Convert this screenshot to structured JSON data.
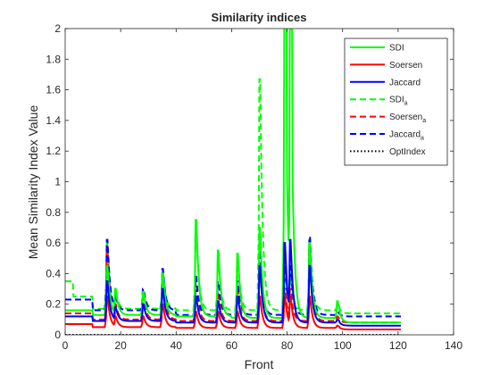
{
  "chart_data": {
    "type": "line",
    "title": "Similarity indices",
    "xlabel": "Front",
    "ylabel": "Mean Similarity Index Value",
    "xlim": [
      0,
      140
    ],
    "ylim": [
      0,
      2
    ],
    "xticks": [
      0,
      20,
      40,
      60,
      80,
      100,
      120,
      140
    ],
    "yticks": [
      0,
      0.2,
      0.4,
      0.6,
      0.8,
      1,
      1.2,
      1.4,
      1.6,
      1.8,
      2
    ],
    "xtick_labels": [
      "0",
      "20",
      "40",
      "60",
      "80",
      "100",
      "120",
      "140"
    ],
    "ytick_labels": [
      "0",
      "0.2",
      "0.4",
      "0.6",
      "0.8",
      "1",
      "1.2",
      "1.4",
      "1.6",
      "1.8",
      "2"
    ],
    "grid": false,
    "legend_position": "top-right",
    "x_range": [
      0,
      121
    ],
    "series": [
      {
        "name": "SDI",
        "subscript": "",
        "color": "#00ff00",
        "style": "solid",
        "base": 0.16,
        "baseline_levels": [
          [
            0,
            0.16
          ],
          [
            10,
            0.13
          ],
          [
            40,
            0.12
          ],
          [
            60,
            0.11
          ],
          [
            99,
            0.08
          ]
        ]
      },
      {
        "name": "Soersen",
        "subscript": "",
        "color": "#ff0000",
        "style": "solid",
        "base": 0.07,
        "baseline_levels": [
          [
            0,
            0.07
          ],
          [
            10,
            0.05
          ],
          [
            40,
            0.045
          ],
          [
            99,
            0.035
          ]
        ]
      },
      {
        "name": "Jaccard",
        "subscript": "",
        "color": "#0000ff",
        "style": "solid",
        "base": 0.12,
        "baseline_levels": [
          [
            0,
            0.12
          ],
          [
            10,
            0.09
          ],
          [
            40,
            0.08
          ],
          [
            99,
            0.06
          ]
        ]
      },
      {
        "name": "SDI",
        "subscript": "a",
        "color": "#00ff00",
        "style": "dashed",
        "base": 0.35,
        "baseline_levels": [
          [
            0,
            0.35
          ],
          [
            3,
            0.25
          ],
          [
            10,
            0.17
          ],
          [
            40,
            0.16
          ],
          [
            99,
            0.14
          ]
        ]
      },
      {
        "name": "Soersen",
        "subscript": "a",
        "color": "#ff0000",
        "style": "dashed",
        "base": 0.14,
        "baseline_levels": [
          [
            0,
            0.14
          ],
          [
            10,
            0.1
          ],
          [
            40,
            0.09
          ],
          [
            99,
            0.08
          ]
        ]
      },
      {
        "name": "Jaccard",
        "subscript": "a",
        "color": "#0000ff",
        "style": "dashed",
        "base": 0.23,
        "baseline_levels": [
          [
            0,
            0.23
          ],
          [
            10,
            0.16
          ],
          [
            40,
            0.13
          ],
          [
            99,
            0.12
          ]
        ]
      },
      {
        "name": "OptIndex",
        "subscript": "",
        "color": "#000000",
        "style": "dotted",
        "base": 0.0,
        "baseline_levels": [
          [
            0,
            0.0
          ]
        ]
      }
    ],
    "spikes": [
      {
        "x": 15,
        "heights": [
          0.45,
          0.25,
          0.35,
          0.6,
          0.58,
          0.62,
          0
        ]
      },
      {
        "x": 18,
        "heights": [
          0.3,
          0.12,
          0.18,
          0.28,
          0.2,
          0.25,
          0
        ]
      },
      {
        "x": 28,
        "heights": [
          0.28,
          0.12,
          0.2,
          0.3,
          0.25,
          0.3,
          0
        ]
      },
      {
        "x": 35,
        "heights": [
          0.4,
          0.2,
          0.3,
          0.42,
          0.4,
          0.43,
          0
        ]
      },
      {
        "x": 47,
        "heights": [
          0.75,
          0.15,
          0.25,
          0.72,
          0.35,
          0.38,
          0
        ]
      },
      {
        "x": 55,
        "heights": [
          0.55,
          0.15,
          0.22,
          0.5,
          0.28,
          0.35,
          0
        ]
      },
      {
        "x": 62,
        "heights": [
          0.53,
          0.15,
          0.25,
          0.5,
          0.3,
          0.35,
          0
        ]
      },
      {
        "x": 70,
        "heights": [
          0.7,
          0.25,
          0.45,
          1.67,
          0.45,
          0.55,
          0
        ]
      },
      {
        "x": 79,
        "heights": [
          2.0,
          0.25,
          0.6,
          0.4,
          0.3,
          0.45,
          0
        ]
      },
      {
        "x": 81,
        "heights": [
          2.0,
          0.25,
          0.62,
          0.4,
          0.3,
          0.45,
          0
        ]
      },
      {
        "x": 88,
        "heights": [
          0.6,
          0.25,
          0.45,
          0.62,
          0.55,
          0.64,
          0
        ]
      },
      {
        "x": 98,
        "heights": [
          0.22,
          0.06,
          0.1,
          0.2,
          0.12,
          0.15,
          0
        ]
      }
    ]
  }
}
